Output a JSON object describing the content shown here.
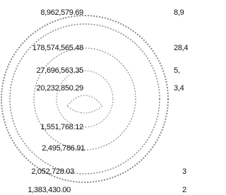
{
  "amounts": [
    "8,962,579.69",
    "178,574,565.48",
    "27,696,563.35",
    "20,232,850.29",
    "1,551,768.12",
    "2,495,786.91",
    "2,052,728.03",
    "1,383,430.00"
  ],
  "right_column": [
    "8,9",
    "28,4",
    "5,",
    "3,4",
    "3",
    "2"
  ]
}
